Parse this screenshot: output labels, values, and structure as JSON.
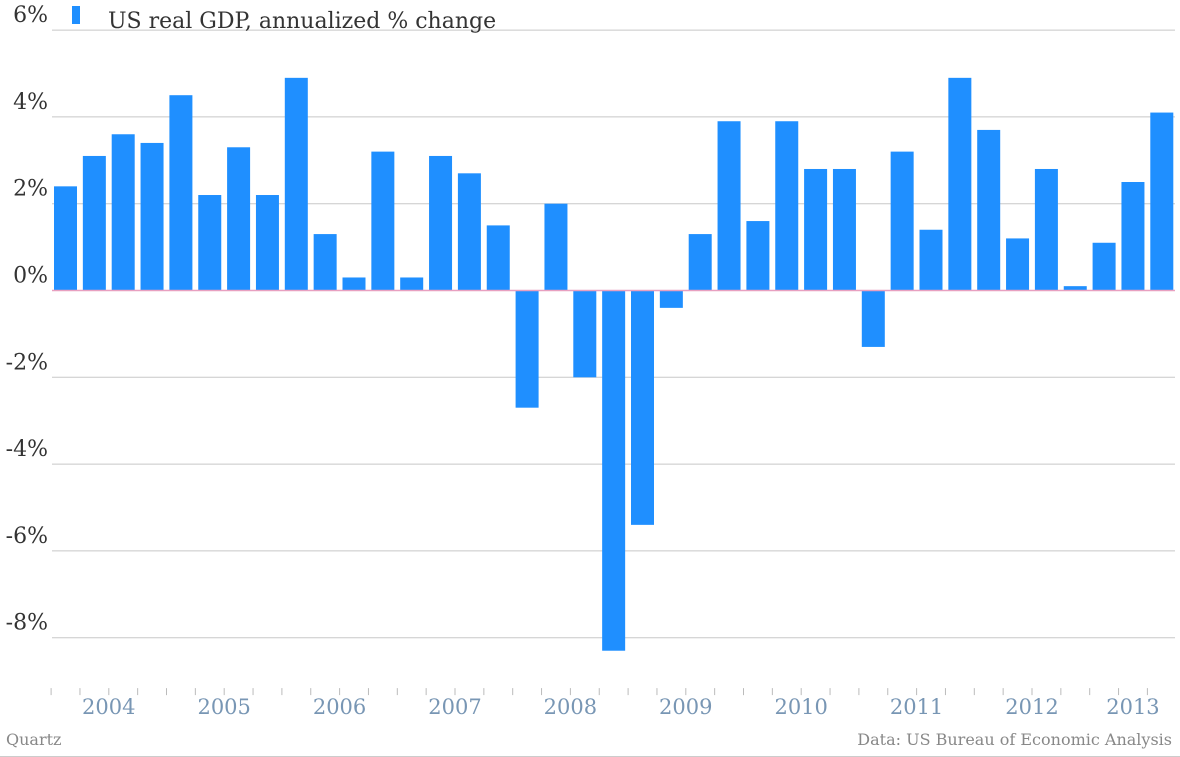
{
  "chart_data": {
    "type": "bar",
    "legend": {
      "label": "US real GDP, annualized % change",
      "placement": "top-left"
    },
    "series": [
      {
        "name": "US real GDP, annualized % change",
        "color": "#1f8fff",
        "values": [
          2.4,
          3.1,
          3.6,
          3.4,
          4.5,
          2.2,
          3.3,
          2.2,
          4.9,
          1.3,
          0.3,
          3.2,
          0.3,
          3.1,
          2.7,
          1.5,
          -2.7,
          2.0,
          -2.0,
          -8.3,
          -5.4,
          -0.4,
          1.3,
          3.9,
          1.6,
          3.9,
          2.8,
          2.8,
          -1.3,
          3.2,
          1.4,
          4.9,
          3.7,
          1.2,
          2.8,
          0.1,
          1.1,
          2.5,
          4.1
        ]
      }
    ],
    "year_labels": [
      "2004",
      "2005",
      "2006",
      "2007",
      "2008",
      "2009",
      "2010",
      "2011",
      "2012",
      "2013"
    ],
    "yticks": [
      {
        "value": 6,
        "label": "6%"
      },
      {
        "value": 4,
        "label": "4%"
      },
      {
        "value": 2,
        "label": "2%"
      },
      {
        "value": 0,
        "label": "0%"
      },
      {
        "value": -2,
        "label": "-2%"
      },
      {
        "value": -4,
        "label": "-4%"
      },
      {
        "value": -6,
        "label": "-6%"
      },
      {
        "value": -8,
        "label": "-8%"
      }
    ],
    "ylim": [
      -9,
      6
    ],
    "grid": true,
    "colors": {
      "bar": "#1f8fff",
      "zero_line": "#e8a0c0",
      "grid": "#c8c8c8",
      "year_label": "#7896b4",
      "credit": "#888888"
    }
  },
  "footer": {
    "source": "Quartz",
    "credit": "Data: US Bureau of Economic Analysis"
  }
}
